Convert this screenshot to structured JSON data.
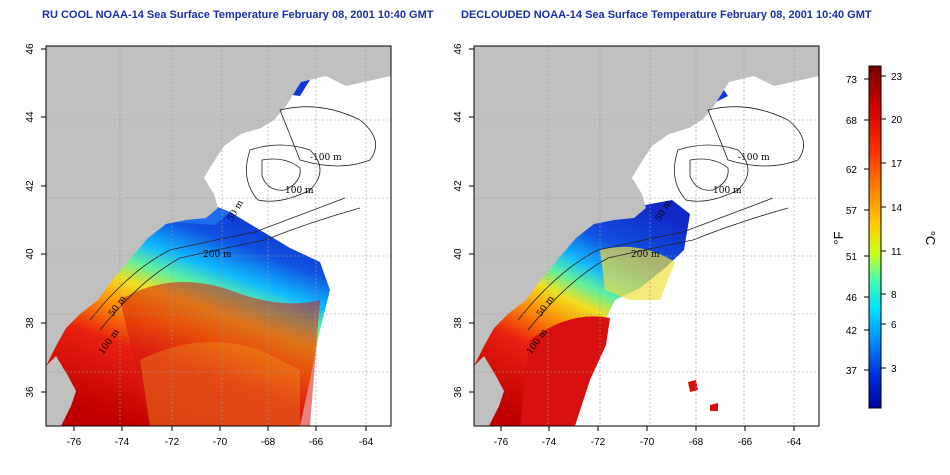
{
  "titles": {
    "left": "RU COOL NOAA-14 Sea Surface Temperature February 08, 2001 10:40 GMT",
    "right": "DECLOUDED NOAA-14 Sea Surface Temperature February 08, 2001 10:40 GMT"
  },
  "axes": {
    "lon_ticks": [
      "-76",
      "-74",
      "-72",
      "-70",
      "-68",
      "-66",
      "-64"
    ],
    "lat_ticks": [
      "36",
      "38",
      "40",
      "42",
      "44",
      "46"
    ]
  },
  "contours": {
    "left": [
      "-100 m",
      "100 m",
      "50 m",
      "200 m",
      "50 m",
      "100 m"
    ],
    "right": [
      "-100 m",
      "100 m",
      "50 m",
      "200 m",
      "50 m",
      "100 m"
    ]
  },
  "colorbar": {
    "fahrenheit_ticks": [
      "73",
      "68",
      "62",
      "57",
      "51",
      "46",
      "42",
      "37"
    ],
    "celsius_ticks": [
      "23",
      "20",
      "17",
      "14",
      "11",
      "8",
      "6",
      "3"
    ],
    "fahrenheit_unit": "°F",
    "celsius_unit": "°C",
    "colors": [
      "#7a0000",
      "#d00000",
      "#ff3000",
      "#ff8a00",
      "#ffd000",
      "#c8ff20",
      "#40ffb0",
      "#00e0ff",
      "#0090ff",
      "#0030e0",
      "#0000a0"
    ]
  },
  "map_colors": {
    "land": "#c0c0c0",
    "cold": "#1030d8",
    "warm": "#d81010"
  }
}
